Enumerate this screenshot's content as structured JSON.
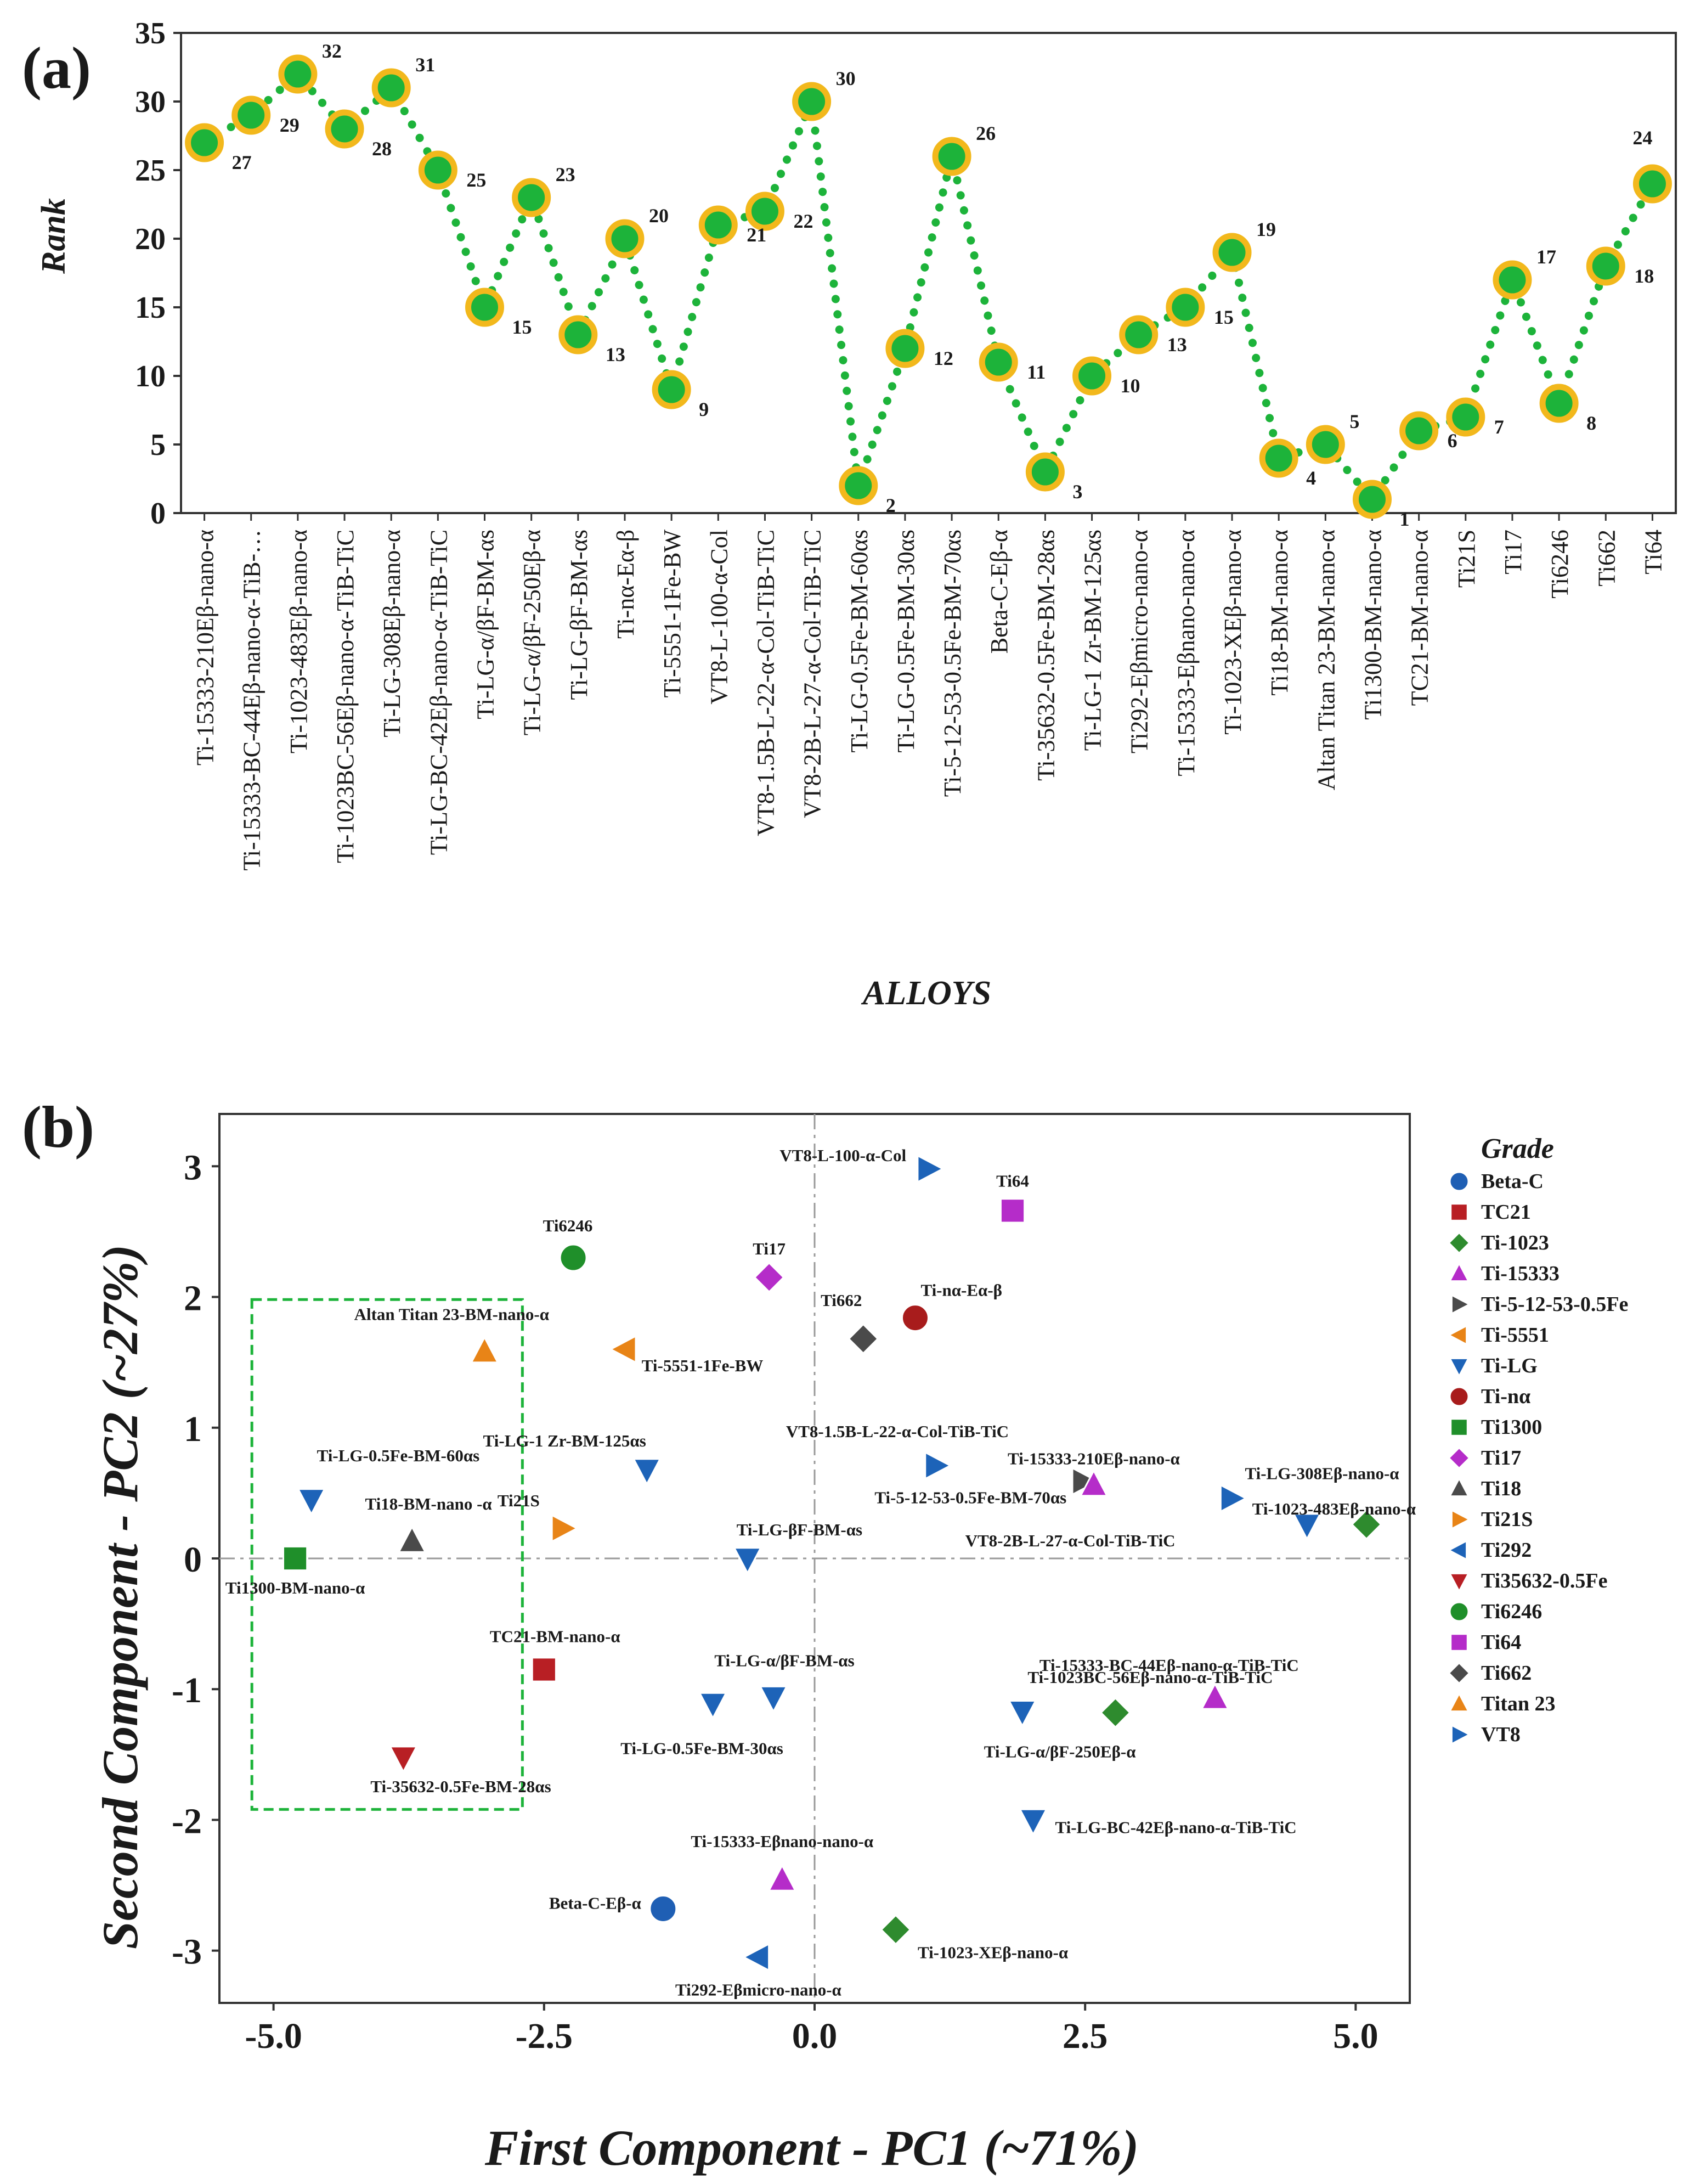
{
  "chart_data": [
    {
      "panel": "(a)",
      "type": "line",
      "xlabel": "ALLOYS",
      "ylabel": "Rank",
      "ylim": [
        0,
        35
      ],
      "yticks": [
        0,
        5,
        10,
        15,
        20,
        25,
        30,
        35
      ],
      "categories": [
        "Ti-15333-210Eβ-nano-α",
        "Ti-15333-BC-44Eβ-nano-α-TiB-…",
        "Ti-1023-483Eβ-nano-α",
        "Ti-1023BC-56Eβ-nano-α-TiB-TiC",
        "Ti-LG-308Eβ-nano-α",
        "Ti-LG-BC-42Eβ-nano-α-TiB-TiC",
        "Ti-LG-α/βF-BM-αs",
        "Ti-LG-α/βF-250Eβ-α",
        "Ti-LG-βF-BM-αs",
        "Ti-nα-Eα-β",
        "Ti-5551-1Fe-BW",
        "VT8-L-100-α-Col",
        "VT8-1.5B-L-22-α-Col-TiB-TiC",
        "VT8-2B-L-27-α-Col-TiB-TiC",
        "Ti-LG-0.5Fe-BM-60αs",
        "Ti-LG-0.5Fe-BM-30αs",
        "Ti-5-12-53-0.5Fe-BM-70αs",
        "Beta-C-Eβ-α",
        "Ti-35632-0.5Fe-BM-28αs",
        "Ti-LG-1 Zr-BM-125αs",
        "Ti292-Eβmicro-nano-α",
        "Ti-15333-Eβnano-nano-α",
        "Ti-1023-XEβ-nano-α",
        "Ti18-BM-nano-α",
        "Altan Titan 23-BM-nano-α",
        "Ti1300-BM-nano-α",
        "TC21-BM-nano-α",
        "Ti21S",
        "Ti17",
        "Ti6246",
        "Ti662",
        "Ti64"
      ],
      "values": [
        27,
        29,
        32,
        28,
        31,
        25,
        15,
        23,
        13,
        20,
        9,
        21,
        22,
        30,
        2,
        12,
        26,
        11,
        3,
        10,
        13,
        15,
        19,
        4,
        5,
        1,
        6,
        7,
        17,
        8,
        18,
        24
      ],
      "point_labels": [
        "27",
        "29",
        "32",
        "28",
        "31",
        "25",
        "15",
        "23",
        "13",
        "20",
        "9",
        "21",
        "22",
        "30",
        "2",
        "12",
        "26",
        "11",
        "3",
        "10",
        "13",
        "15",
        "19",
        "4",
        "5",
        "1",
        "6",
        "7",
        "17",
        "8",
        "18",
        "24"
      ],
      "line_color": "#1db33a",
      "marker_fill": "#1db33a",
      "marker_edge": "#f2b81c"
    },
    {
      "panel": "(b)",
      "type": "scatter",
      "xlabel": "First Component - PC1 (~71%)",
      "ylabel": "Second Component - PC2 (~27%)",
      "xlim": [
        -5.5,
        5.5
      ],
      "ylim": [
        -3.4,
        3.4
      ],
      "xticks": [
        -5,
        -2.5,
        0,
        2.5,
        5
      ],
      "xtick_labels": [
        "-5.0",
        "-2.5",
        "0.0",
        "2.5",
        "5.0"
      ],
      "yticks": [
        -3,
        -2,
        -1,
        0,
        1,
        2,
        3
      ],
      "ytick_labels": [
        "-3",
        "-2",
        "-1",
        "0",
        "1",
        "2",
        "3"
      ],
      "legend_title": "Grade",
      "legend_position": "right",
      "grades": [
        {
          "name": "Beta-C",
          "color": "#1f5fb4",
          "marker": "circle"
        },
        {
          "name": "TC21",
          "color": "#b81f24",
          "marker": "square"
        },
        {
          "name": "Ti-1023",
          "color": "#2e8b2e",
          "marker": "diamond"
        },
        {
          "name": "Ti-15333",
          "color": "#b52cc9",
          "marker": "triangle-up"
        },
        {
          "name": "Ti-5-12-53-0.5Fe",
          "color": "#4a4a4a",
          "marker": "triangle-right"
        },
        {
          "name": "Ti-5551",
          "color": "#e88417",
          "marker": "triangle-left"
        },
        {
          "name": "Ti-LG",
          "color": "#1d63b8",
          "marker": "triangle-down"
        },
        {
          "name": "Ti-nα",
          "color": "#a81c1c",
          "marker": "circle"
        },
        {
          "name": "Ti1300",
          "color": "#1f8f2a",
          "marker": "square"
        },
        {
          "name": "Ti17",
          "color": "#b52cc9",
          "marker": "diamond"
        },
        {
          "name": "Ti18",
          "color": "#4a4a4a",
          "marker": "triangle-up"
        },
        {
          "name": "Ti21S",
          "color": "#e88417",
          "marker": "triangle-right"
        },
        {
          "name": "Ti292",
          "color": "#1d63b8",
          "marker": "triangle-left"
        },
        {
          "name": "Ti35632-0.5Fe",
          "color": "#b81f24",
          "marker": "triangle-down"
        },
        {
          "name": "Ti6246",
          "color": "#1f8f2a",
          "marker": "circle"
        },
        {
          "name": "Ti64",
          "color": "#b52cc9",
          "marker": "square"
        },
        {
          "name": "Ti662",
          "color": "#4a4a4a",
          "marker": "diamond"
        },
        {
          "name": "Titan 23",
          "color": "#e88417",
          "marker": "triangle-up"
        },
        {
          "name": "VT8",
          "color": "#1d63b8",
          "marker": "triangle-right"
        }
      ],
      "points": [
        {
          "label": "VT8-L-100-α-Col",
          "grade": "VT8",
          "x": 1.05,
          "y": 2.98
        },
        {
          "label": "Ti64",
          "grade": "Ti64",
          "x": 1.83,
          "y": 2.66
        },
        {
          "label": "Ti6246",
          "grade": "Ti6246",
          "x": -2.23,
          "y": 2.3
        },
        {
          "label": "Ti17",
          "grade": "Ti17",
          "x": -0.42,
          "y": 2.15
        },
        {
          "label": "Ti-nα-Eα-β",
          "grade": "Ti-nα",
          "x": 0.93,
          "y": 1.84
        },
        {
          "label": "Ti662",
          "grade": "Ti662",
          "x": 0.45,
          "y": 1.68
        },
        {
          "label": "Altan Titan 23-BM-nano-α",
          "grade": "Titan 23",
          "x": -3.05,
          "y": 1.58
        },
        {
          "label": "Ti-5551-1Fe-BW",
          "grade": "Ti-5551",
          "x": -1.75,
          "y": 1.6
        },
        {
          "label": "Ti-LG-1 Zr-BM-125αs",
          "grade": "Ti-LG",
          "x": -1.55,
          "y": 0.68
        },
        {
          "label": "VT8-1.5B-L-22-α-Col-TiB-TiC",
          "grade": "VT8",
          "x": 1.12,
          "y": 0.71
        },
        {
          "label": "Ti-5-12-53-0.5Fe-BM-70αs",
          "grade": "Ti-5-12-53-0.5Fe",
          "x": 2.48,
          "y": 0.59
        },
        {
          "label": "Ti-15333-210Eβ-nano-α",
          "grade": "Ti-15333",
          "x": 2.58,
          "y": 0.56
        },
        {
          "label": "Ti-LG-308Eβ-nano-α",
          "grade": "VT8",
          "x": 3.85,
          "y": 0.46
        },
        {
          "label": "Ti-LG-0.5Fe-BM-60αs",
          "grade": "Ti-LG",
          "x": -4.65,
          "y": 0.45
        },
        {
          "label": "Ti18-BM-nano -α",
          "grade": "Ti18",
          "x": -3.72,
          "y": 0.13
        },
        {
          "label": "Ti21S",
          "grade": "Ti21S",
          "x": -2.33,
          "y": 0.23
        },
        {
          "label": "Ti-LG-βF-BM-αs",
          "grade": "Ti-LG",
          "x": -0.62,
          "y": 0.0
        },
        {
          "label": "VT8-2B-L-27-α-Col-TiB-TiC",
          "grade": "Ti-LG",
          "x": 4.55,
          "y": 0.26
        },
        {
          "label": "Ti-1023-483Eβ-nano-α",
          "grade": "Ti-1023",
          "x": 5.1,
          "y": 0.26
        },
        {
          "label": "Ti1300-BM-nano-α",
          "grade": "Ti1300",
          "x": -4.8,
          "y": 0.0
        },
        {
          "label": "TC21-BM-nano-α",
          "grade": "TC21",
          "x": -2.5,
          "y": -0.85
        },
        {
          "label": "Ti-LG-α/βF-BM-αs",
          "grade": "Ti-LG",
          "x": -0.38,
          "y": -1.06
        },
        {
          "label": "Ti-LG-0.5Fe-BM-30αs",
          "grade": "Ti-LG",
          "x": -0.94,
          "y": -1.11
        },
        {
          "label": "Ti-LG-α/βF-250Eβ-α",
          "grade": "Ti-LG",
          "x": 1.92,
          "y": -1.17
        },
        {
          "label": "Ti-1023BC-56Eβ-nano-α-TiB-TiC",
          "grade": "Ti-1023",
          "x": 2.78,
          "y": -1.18
        },
        {
          "label": "Ti-15333-BC-44Eβ-nano-α-TiB-TiC",
          "grade": "Ti-15333",
          "x": 3.7,
          "y": -1.07
        },
        {
          "label": "Ti-35632-0.5Fe-BM-28αs",
          "grade": "Ti35632-0.5Fe",
          "x": -3.8,
          "y": -1.52
        },
        {
          "label": "Ti-LG-BC-42Eβ-nano-α-TiB-TiC",
          "grade": "Ti-LG",
          "x": 2.02,
          "y": -2.0
        },
        {
          "label": "Ti-15333-Eβnano-nano-α",
          "grade": "Ti-15333",
          "x": -0.3,
          "y": -2.46
        },
        {
          "label": "Beta-C-Eβ-α",
          "grade": "Beta-C",
          "x": -1.4,
          "y": -2.68
        },
        {
          "label": "Ti-1023-XEβ-nano-α",
          "grade": "Ti-1023",
          "x": 0.75,
          "y": -2.84
        },
        {
          "label": "Ti292-Eβmicro-nano-α",
          "grade": "Ti292",
          "x": -0.52,
          "y": -3.05
        }
      ],
      "highlight_box": {
        "x_range": [
          -5.2,
          -2.7
        ],
        "y_range": [
          -1.92,
          1.98
        ],
        "style": "dashed",
        "color": "#1db33a"
      }
    }
  ]
}
